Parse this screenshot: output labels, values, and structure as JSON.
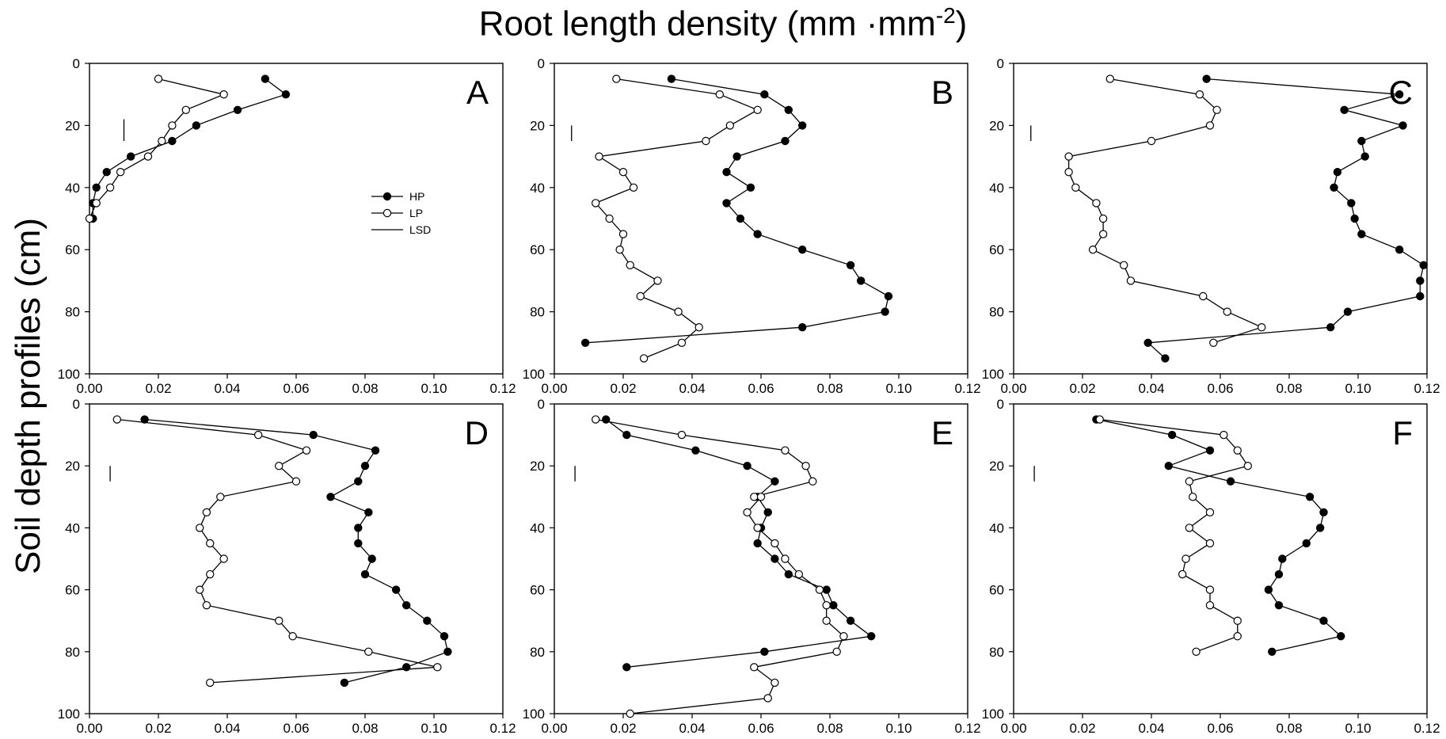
{
  "figure": {
    "title": "Root length density (mm ·mm",
    "title_sup": "-2",
    "title_close": ")",
    "ylabel": "Soil depth profiles (cm)"
  },
  "legend": {
    "panel": "A",
    "items": [
      "HP",
      "LP",
      "LSD"
    ]
  },
  "chart_data": [
    {
      "panel": "A",
      "type": "line",
      "xlim": [
        0,
        0.12
      ],
      "ylim": [
        0,
        100
      ],
      "y_inverted": true,
      "xticks": [
        "0.00",
        "0.02",
        "0.04",
        "0.06",
        "0.08",
        "0.10",
        "0.12"
      ],
      "yticks": [
        "0",
        "20",
        "40",
        "60",
        "80",
        "100"
      ],
      "lsd": {
        "x": 0.01,
        "y": [
          18,
          25
        ]
      },
      "series": [
        {
          "name": "HP",
          "marker": "filled",
          "points": [
            [
              0.051,
              5
            ],
            [
              0.057,
              10
            ],
            [
              0.043,
              15
            ],
            [
              0.031,
              20
            ],
            [
              0.024,
              25
            ],
            [
              0.012,
              30
            ],
            [
              0.005,
              35
            ],
            [
              0.002,
              40
            ],
            [
              0.001,
              45
            ],
            [
              0.001,
              50
            ]
          ]
        },
        {
          "name": "LP",
          "marker": "open",
          "points": [
            [
              0.02,
              5
            ],
            [
              0.039,
              10
            ],
            [
              0.028,
              15
            ],
            [
              0.024,
              20
            ],
            [
              0.021,
              25
            ],
            [
              0.017,
              30
            ],
            [
              0.009,
              35
            ],
            [
              0.006,
              40
            ],
            [
              0.002,
              45
            ],
            [
              0.0,
              50
            ]
          ]
        }
      ]
    },
    {
      "panel": "B",
      "type": "line",
      "xlim": [
        0,
        0.12
      ],
      "ylim": [
        0,
        100
      ],
      "y_inverted": true,
      "xticks": [
        "0.00",
        "0.02",
        "0.04",
        "0.06",
        "0.08",
        "0.10",
        "0.12"
      ],
      "yticks": [
        "0",
        "20",
        "40",
        "60",
        "80",
        "100"
      ],
      "lsd": {
        "x": 0.005,
        "y": [
          20,
          25
        ]
      },
      "series": [
        {
          "name": "HP",
          "marker": "filled",
          "points": [
            [
              0.034,
              5
            ],
            [
              0.061,
              10
            ],
            [
              0.068,
              15
            ],
            [
              0.072,
              20
            ],
            [
              0.067,
              25
            ],
            [
              0.053,
              30
            ],
            [
              0.05,
              35
            ],
            [
              0.057,
              40
            ],
            [
              0.05,
              45
            ],
            [
              0.054,
              50
            ],
            [
              0.059,
              55
            ],
            [
              0.072,
              60
            ],
            [
              0.086,
              65
            ],
            [
              0.089,
              70
            ],
            [
              0.097,
              75
            ],
            [
              0.096,
              80
            ],
            [
              0.072,
              85
            ],
            [
              0.009,
              90
            ]
          ]
        },
        {
          "name": "LP",
          "marker": "open",
          "points": [
            [
              0.018,
              5
            ],
            [
              0.048,
              10
            ],
            [
              0.059,
              15
            ],
            [
              0.051,
              20
            ],
            [
              0.044,
              25
            ],
            [
              0.013,
              30
            ],
            [
              0.02,
              35
            ],
            [
              0.023,
              40
            ],
            [
              0.012,
              45
            ],
            [
              0.016,
              50
            ],
            [
              0.02,
              55
            ],
            [
              0.019,
              60
            ],
            [
              0.022,
              65
            ],
            [
              0.03,
              70
            ],
            [
              0.025,
              75
            ],
            [
              0.036,
              80
            ],
            [
              0.042,
              85
            ],
            [
              0.037,
              90
            ],
            [
              0.026,
              95
            ]
          ]
        }
      ]
    },
    {
      "panel": "C",
      "type": "line",
      "xlim": [
        0,
        0.12
      ],
      "ylim": [
        0,
        100
      ],
      "y_inverted": true,
      "xticks": [
        "0.00",
        "0.02",
        "0.04",
        "0.06",
        "0.08",
        "0.10",
        "0.12"
      ],
      "yticks": [
        "0",
        "20",
        "40",
        "60",
        "80",
        "100"
      ],
      "lsd": {
        "x": 0.005,
        "y": [
          20,
          25
        ]
      },
      "series": [
        {
          "name": "HP",
          "marker": "filled",
          "points": [
            [
              0.056,
              5
            ],
            [
              0.112,
              10
            ],
            [
              0.096,
              15
            ],
            [
              0.113,
              20
            ],
            [
              0.101,
              25
            ],
            [
              0.102,
              30
            ],
            [
              0.094,
              35
            ],
            [
              0.093,
              40
            ],
            [
              0.098,
              45
            ],
            [
              0.099,
              50
            ],
            [
              0.101,
              55
            ],
            [
              0.112,
              60
            ],
            [
              0.119,
              65
            ],
            [
              0.118,
              70
            ],
            [
              0.118,
              75
            ],
            [
              0.097,
              80
            ],
            [
              0.092,
              85
            ],
            [
              0.039,
              90
            ],
            [
              0.044,
              95
            ]
          ]
        },
        {
          "name": "LP",
          "marker": "open",
          "points": [
            [
              0.028,
              5
            ],
            [
              0.054,
              10
            ],
            [
              0.059,
              15
            ],
            [
              0.057,
              20
            ],
            [
              0.04,
              25
            ],
            [
              0.016,
              30
            ],
            [
              0.016,
              35
            ],
            [
              0.018,
              40
            ],
            [
              0.024,
              45
            ],
            [
              0.026,
              50
            ],
            [
              0.026,
              55
            ],
            [
              0.023,
              60
            ],
            [
              0.032,
              65
            ],
            [
              0.034,
              70
            ],
            [
              0.055,
              75
            ],
            [
              0.062,
              80
            ],
            [
              0.072,
              85
            ],
            [
              0.058,
              90
            ]
          ]
        }
      ]
    },
    {
      "panel": "D",
      "type": "line",
      "xlim": [
        0,
        0.12
      ],
      "ylim": [
        0,
        100
      ],
      "y_inverted": true,
      "xticks": [
        "0.00",
        "0.02",
        "0.04",
        "0.06",
        "0.08",
        "0.10",
        "0.12"
      ],
      "yticks": [
        "0",
        "20",
        "40",
        "60",
        "80",
        "100"
      ],
      "lsd": {
        "x": 0.006,
        "y": [
          20,
          25
        ]
      },
      "series": [
        {
          "name": "HP",
          "marker": "filled",
          "points": [
            [
              0.016,
              5
            ],
            [
              0.065,
              10
            ],
            [
              0.083,
              15
            ],
            [
              0.08,
              20
            ],
            [
              0.078,
              25
            ],
            [
              0.07,
              30
            ],
            [
              0.081,
              35
            ],
            [
              0.078,
              40
            ],
            [
              0.078,
              45
            ],
            [
              0.082,
              50
            ],
            [
              0.08,
              55
            ],
            [
              0.089,
              60
            ],
            [
              0.092,
              65
            ],
            [
              0.098,
              70
            ],
            [
              0.103,
              75
            ],
            [
              0.104,
              80
            ],
            [
              0.092,
              85
            ],
            [
              0.074,
              90
            ]
          ]
        },
        {
          "name": "LP",
          "marker": "open",
          "points": [
            [
              0.008,
              5
            ],
            [
              0.049,
              10
            ],
            [
              0.063,
              15
            ],
            [
              0.055,
              20
            ],
            [
              0.06,
              25
            ],
            [
              0.038,
              30
            ],
            [
              0.034,
              35
            ],
            [
              0.032,
              40
            ],
            [
              0.035,
              45
            ],
            [
              0.039,
              50
            ],
            [
              0.035,
              55
            ],
            [
              0.032,
              60
            ],
            [
              0.034,
              65
            ],
            [
              0.055,
              70
            ],
            [
              0.059,
              75
            ],
            [
              0.081,
              80
            ],
            [
              0.101,
              85
            ],
            [
              0.035,
              90
            ]
          ]
        }
      ]
    },
    {
      "panel": "E",
      "type": "line",
      "xlim": [
        0,
        0.12
      ],
      "ylim": [
        0,
        100
      ],
      "y_inverted": true,
      "xticks": [
        "0.00",
        "0.02",
        "0.04",
        "0.06",
        "0.08",
        "0.10",
        "0.12"
      ],
      "yticks": [
        "0",
        "20",
        "40",
        "60",
        "80",
        "100"
      ],
      "lsd": {
        "x": 0.006,
        "y": [
          20,
          25
        ]
      },
      "series": [
        {
          "name": "HP",
          "marker": "filled",
          "points": [
            [
              0.015,
              5
            ],
            [
              0.021,
              10
            ],
            [
              0.041,
              15
            ],
            [
              0.056,
              20
            ],
            [
              0.064,
              25
            ],
            [
              0.059,
              30
            ],
            [
              0.062,
              35
            ],
            [
              0.06,
              40
            ],
            [
              0.059,
              45
            ],
            [
              0.064,
              50
            ],
            [
              0.068,
              55
            ],
            [
              0.079,
              60
            ],
            [
              0.081,
              65
            ],
            [
              0.086,
              70
            ],
            [
              0.092,
              75
            ],
            [
              0.061,
              80
            ],
            [
              0.021,
              85
            ]
          ]
        },
        {
          "name": "LP",
          "marker": "open",
          "points": [
            [
              0.012,
              5
            ],
            [
              0.037,
              10
            ],
            [
              0.067,
              15
            ],
            [
              0.073,
              20
            ],
            [
              0.075,
              25
            ],
            [
              0.058,
              30
            ],
            [
              0.06,
              30
            ],
            [
              0.056,
              35
            ],
            [
              0.059,
              40
            ],
            [
              0.064,
              45
            ],
            [
              0.067,
              50
            ],
            [
              0.071,
              55
            ],
            [
              0.077,
              60
            ],
            [
              0.079,
              65
            ],
            [
              0.079,
              70
            ],
            [
              0.084,
              75
            ],
            [
              0.082,
              80
            ],
            [
              0.058,
              85
            ],
            [
              0.064,
              90
            ],
            [
              0.062,
              95
            ],
            [
              0.022,
              100
            ]
          ]
        }
      ]
    },
    {
      "panel": "F",
      "type": "line",
      "xlim": [
        0,
        0.12
      ],
      "ylim": [
        0,
        100
      ],
      "y_inverted": true,
      "xticks": [
        "0.00",
        "0.02",
        "0.04",
        "0.06",
        "0.08",
        "0.10",
        "0.12"
      ],
      "yticks": [
        "0",
        "20",
        "40",
        "60",
        "80",
        "100"
      ],
      "lsd": {
        "x": 0.006,
        "y": [
          20,
          25
        ]
      },
      "series": [
        {
          "name": "HP",
          "marker": "filled",
          "points": [
            [
              0.024,
              5
            ],
            [
              0.046,
              10
            ],
            [
              0.057,
              15
            ],
            [
              0.045,
              20
            ],
            [
              0.063,
              25
            ],
            [
              0.086,
              30
            ],
            [
              0.09,
              35
            ],
            [
              0.089,
              40
            ],
            [
              0.085,
              45
            ],
            [
              0.078,
              50
            ],
            [
              0.077,
              55
            ],
            [
              0.074,
              60
            ],
            [
              0.077,
              65
            ],
            [
              0.09,
              70
            ],
            [
              0.095,
              75
            ],
            [
              0.075,
              80
            ]
          ]
        },
        {
          "name": "LP",
          "marker": "open",
          "points": [
            [
              0.025,
              5
            ],
            [
              0.061,
              10
            ],
            [
              0.065,
              15
            ],
            [
              0.068,
              20
            ],
            [
              0.051,
              25
            ],
            [
              0.052,
              30
            ],
            [
              0.057,
              35
            ],
            [
              0.051,
              40
            ],
            [
              0.057,
              45
            ],
            [
              0.05,
              50
            ],
            [
              0.049,
              55
            ],
            [
              0.057,
              60
            ],
            [
              0.057,
              65
            ],
            [
              0.065,
              70
            ],
            [
              0.065,
              75
            ],
            [
              0.053,
              80
            ]
          ]
        }
      ]
    }
  ]
}
